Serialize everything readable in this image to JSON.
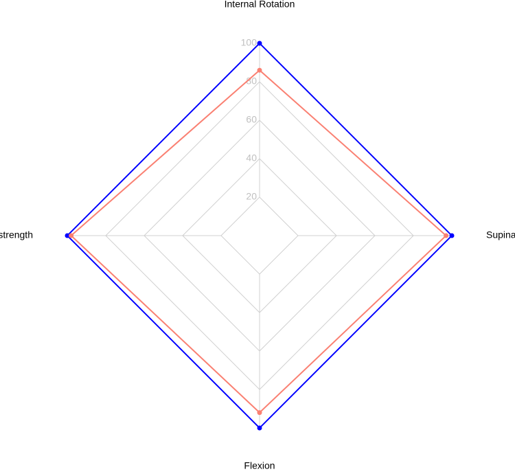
{
  "chart_data": {
    "type": "radar",
    "categories": [
      "Internal Rotation",
      "Supination",
      "Flexion",
      "Grip strength"
    ],
    "series": [
      {
        "color": "#0000ff",
        "values": [
          100,
          100,
          100,
          100
        ]
      },
      {
        "color": "#fa8072",
        "values": [
          86,
          97,
          92,
          98
        ]
      }
    ],
    "rlim": [
      0,
      100
    ],
    "rticks": [
      20,
      40,
      60,
      80,
      100
    ],
    "grid": true
  }
}
